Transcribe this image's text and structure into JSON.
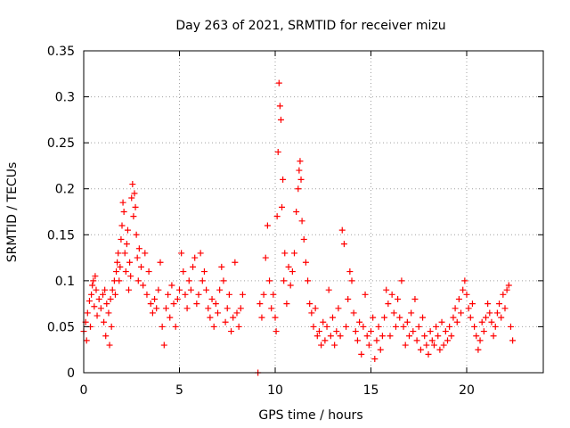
{
  "chart_data": {
    "type": "scatter",
    "title": "Day 263 of 2021, SRMTID for receiver mizu",
    "xlabel": "GPS time / hours",
    "ylabel": "SRMTID / TECUs",
    "xlim": [
      0,
      24
    ],
    "ylim": [
      0,
      0.35
    ],
    "xticks": [
      0,
      5,
      10,
      15,
      20
    ],
    "yticks": [
      0,
      0.05,
      0.1,
      0.15,
      0.2,
      0.25,
      0.3,
      0.35
    ],
    "xtick_labels": [
      "0",
      "5",
      "10",
      "15",
      "20"
    ],
    "ytick_labels": [
      "0",
      "0.05",
      "0.1",
      "0.15",
      "0.2",
      "0.25",
      "0.3",
      "0.35"
    ],
    "grid": true,
    "marker": "plus",
    "series": [
      {
        "name": "SRMTID",
        "color": "#ff0000",
        "points": [
          [
            0.0,
            0.045
          ],
          [
            0.1,
            0.055
          ],
          [
            0.15,
            0.035
          ],
          [
            0.2,
            0.065
          ],
          [
            0.3,
            0.078
          ],
          [
            0.35,
            0.05
          ],
          [
            0.4,
            0.085
          ],
          [
            0.45,
            0.095
          ],
          [
            0.5,
            0.1
          ],
          [
            0.55,
            0.072
          ],
          [
            0.6,
            0.105
          ],
          [
            0.65,
            0.09
          ],
          [
            0.7,
            0.062
          ],
          [
            0.8,
            0.08
          ],
          [
            0.9,
            0.07
          ],
          [
            1.0,
            0.085
          ],
          [
            1.05,
            0.055
          ],
          [
            1.1,
            0.09
          ],
          [
            1.15,
            0.04
          ],
          [
            1.2,
            0.075
          ],
          [
            1.3,
            0.065
          ],
          [
            1.35,
            0.03
          ],
          [
            1.4,
            0.08
          ],
          [
            1.45,
            0.05
          ],
          [
            1.5,
            0.09
          ],
          [
            1.6,
            0.1
          ],
          [
            1.65,
            0.085
          ],
          [
            1.7,
            0.11
          ],
          [
            1.75,
            0.12
          ],
          [
            1.8,
            0.13
          ],
          [
            1.85,
            0.1
          ],
          [
            1.9,
            0.115
          ],
          [
            1.95,
            0.145
          ],
          [
            2.0,
            0.16
          ],
          [
            2.05,
            0.185
          ],
          [
            2.1,
            0.175
          ],
          [
            2.15,
            0.13
          ],
          [
            2.2,
            0.11
          ],
          [
            2.25,
            0.14
          ],
          [
            2.3,
            0.155
          ],
          [
            2.35,
            0.09
          ],
          [
            2.4,
            0.12
          ],
          [
            2.45,
            0.105
          ],
          [
            2.5,
            0.19
          ],
          [
            2.55,
            0.205
          ],
          [
            2.6,
            0.17
          ],
          [
            2.65,
            0.195
          ],
          [
            2.7,
            0.18
          ],
          [
            2.75,
            0.15
          ],
          [
            2.8,
            0.125
          ],
          [
            2.85,
            0.1
          ],
          [
            2.9,
            0.135
          ],
          [
            3.0,
            0.115
          ],
          [
            3.1,
            0.095
          ],
          [
            3.2,
            0.13
          ],
          [
            3.3,
            0.085
          ],
          [
            3.4,
            0.11
          ],
          [
            3.5,
            0.075
          ],
          [
            3.6,
            0.065
          ],
          [
            3.7,
            0.08
          ],
          [
            3.8,
            0.07
          ],
          [
            3.9,
            0.09
          ],
          [
            4.0,
            0.12
          ],
          [
            4.1,
            0.05
          ],
          [
            4.2,
            0.03
          ],
          [
            4.3,
            0.07
          ],
          [
            4.4,
            0.085
          ],
          [
            4.5,
            0.06
          ],
          [
            4.6,
            0.095
          ],
          [
            4.7,
            0.075
          ],
          [
            4.8,
            0.05
          ],
          [
            4.9,
            0.08
          ],
          [
            5.0,
            0.09
          ],
          [
            5.1,
            0.13
          ],
          [
            5.2,
            0.11
          ],
          [
            5.3,
            0.085
          ],
          [
            5.4,
            0.07
          ],
          [
            5.5,
            0.1
          ],
          [
            5.6,
            0.09
          ],
          [
            5.7,
            0.115
          ],
          [
            5.8,
            0.125
          ],
          [
            5.9,
            0.075
          ],
          [
            6.0,
            0.085
          ],
          [
            6.1,
            0.13
          ],
          [
            6.2,
            0.1
          ],
          [
            6.3,
            0.11
          ],
          [
            6.4,
            0.09
          ],
          [
            6.5,
            0.07
          ],
          [
            6.6,
            0.06
          ],
          [
            6.7,
            0.08
          ],
          [
            6.8,
            0.05
          ],
          [
            6.9,
            0.075
          ],
          [
            7.0,
            0.065
          ],
          [
            7.1,
            0.09
          ],
          [
            7.2,
            0.115
          ],
          [
            7.3,
            0.1
          ],
          [
            7.4,
            0.055
          ],
          [
            7.5,
            0.07
          ],
          [
            7.6,
            0.085
          ],
          [
            7.7,
            0.045
          ],
          [
            7.8,
            0.06
          ],
          [
            7.9,
            0.12
          ],
          [
            8.0,
            0.065
          ],
          [
            8.1,
            0.05
          ],
          [
            8.2,
            0.07
          ],
          [
            8.3,
            0.085
          ],
          [
            9.1,
            0.0
          ],
          [
            9.2,
            0.075
          ],
          [
            9.3,
            0.06
          ],
          [
            9.4,
            0.085
          ],
          [
            9.5,
            0.125
          ],
          [
            9.6,
            0.16
          ],
          [
            9.7,
            0.1
          ],
          [
            9.8,
            0.07
          ],
          [
            9.9,
            0.085
          ],
          [
            10.0,
            0.06
          ],
          [
            10.05,
            0.045
          ],
          [
            10.1,
            0.17
          ],
          [
            10.15,
            0.24
          ],
          [
            10.2,
            0.315
          ],
          [
            10.25,
            0.29
          ],
          [
            10.3,
            0.275
          ],
          [
            10.35,
            0.18
          ],
          [
            10.4,
            0.21
          ],
          [
            10.45,
            0.1
          ],
          [
            10.5,
            0.13
          ],
          [
            10.6,
            0.075
          ],
          [
            10.7,
            0.115
          ],
          [
            10.8,
            0.095
          ],
          [
            10.9,
            0.11
          ],
          [
            11.0,
            0.13
          ],
          [
            11.1,
            0.175
          ],
          [
            11.2,
            0.2
          ],
          [
            11.25,
            0.22
          ],
          [
            11.3,
            0.23
          ],
          [
            11.35,
            0.21
          ],
          [
            11.4,
            0.165
          ],
          [
            11.5,
            0.145
          ],
          [
            11.6,
            0.12
          ],
          [
            11.7,
            0.1
          ],
          [
            11.8,
            0.075
          ],
          [
            11.9,
            0.065
          ],
          [
            12.0,
            0.05
          ],
          [
            12.1,
            0.07
          ],
          [
            12.2,
            0.04
          ],
          [
            12.3,
            0.045
          ],
          [
            12.4,
            0.03
          ],
          [
            12.5,
            0.055
          ],
          [
            12.6,
            0.035
          ],
          [
            12.7,
            0.05
          ],
          [
            12.8,
            0.09
          ],
          [
            12.9,
            0.04
          ],
          [
            13.0,
            0.06
          ],
          [
            13.1,
            0.03
          ],
          [
            13.2,
            0.045
          ],
          [
            13.3,
            0.07
          ],
          [
            13.4,
            0.04
          ],
          [
            13.5,
            0.155
          ],
          [
            13.6,
            0.14
          ],
          [
            13.7,
            0.05
          ],
          [
            13.8,
            0.08
          ],
          [
            13.9,
            0.11
          ],
          [
            14.0,
            0.1
          ],
          [
            14.1,
            0.065
          ],
          [
            14.2,
            0.045
          ],
          [
            14.3,
            0.035
          ],
          [
            14.4,
            0.055
          ],
          [
            14.5,
            0.02
          ],
          [
            14.6,
            0.05
          ],
          [
            14.7,
            0.085
          ],
          [
            14.8,
            0.04
          ],
          [
            14.9,
            0.03
          ],
          [
            15.0,
            0.045
          ],
          [
            15.1,
            0.06
          ],
          [
            15.2,
            0.015
          ],
          [
            15.3,
            0.035
          ],
          [
            15.4,
            0.05
          ],
          [
            15.5,
            0.025
          ],
          [
            15.6,
            0.04
          ],
          [
            15.7,
            0.06
          ],
          [
            15.8,
            0.09
          ],
          [
            15.9,
            0.075
          ],
          [
            16.0,
            0.04
          ],
          [
            16.1,
            0.085
          ],
          [
            16.2,
            0.065
          ],
          [
            16.3,
            0.05
          ],
          [
            16.4,
            0.08
          ],
          [
            16.5,
            0.06
          ],
          [
            16.6,
            0.1
          ],
          [
            16.7,
            0.05
          ],
          [
            16.8,
            0.03
          ],
          [
            16.9,
            0.055
          ],
          [
            17.0,
            0.04
          ],
          [
            17.1,
            0.065
          ],
          [
            17.2,
            0.045
          ],
          [
            17.3,
            0.08
          ],
          [
            17.4,
            0.035
          ],
          [
            17.5,
            0.05
          ],
          [
            17.6,
            0.025
          ],
          [
            17.7,
            0.06
          ],
          [
            17.8,
            0.04
          ],
          [
            17.9,
            0.03
          ],
          [
            18.0,
            0.02
          ],
          [
            18.1,
            0.045
          ],
          [
            18.2,
            0.035
          ],
          [
            18.3,
            0.03
          ],
          [
            18.4,
            0.05
          ],
          [
            18.5,
            0.04
          ],
          [
            18.6,
            0.025
          ],
          [
            18.7,
            0.055
          ],
          [
            18.8,
            0.03
          ],
          [
            18.9,
            0.045
          ],
          [
            19.0,
            0.035
          ],
          [
            19.1,
            0.05
          ],
          [
            19.2,
            0.04
          ],
          [
            19.3,
            0.06
          ],
          [
            19.4,
            0.07
          ],
          [
            19.5,
            0.055
          ],
          [
            19.6,
            0.08
          ],
          [
            19.7,
            0.065
          ],
          [
            19.8,
            0.09
          ],
          [
            19.9,
            0.1
          ],
          [
            20.0,
            0.085
          ],
          [
            20.1,
            0.07
          ],
          [
            20.2,
            0.06
          ],
          [
            20.3,
            0.075
          ],
          [
            20.4,
            0.05
          ],
          [
            20.5,
            0.04
          ],
          [
            20.6,
            0.025
          ],
          [
            20.7,
            0.035
          ],
          [
            20.8,
            0.055
          ],
          [
            20.9,
            0.045
          ],
          [
            21.0,
            0.06
          ],
          [
            21.1,
            0.075
          ],
          [
            21.2,
            0.065
          ],
          [
            21.3,
            0.055
          ],
          [
            21.4,
            0.04
          ],
          [
            21.5,
            0.05
          ],
          [
            21.6,
            0.065
          ],
          [
            21.7,
            0.075
          ],
          [
            21.8,
            0.06
          ],
          [
            21.9,
            0.085
          ],
          [
            22.0,
            0.07
          ],
          [
            22.1,
            0.09
          ],
          [
            22.2,
            0.095
          ],
          [
            22.3,
            0.05
          ],
          [
            22.4,
            0.035
          ]
        ]
      }
    ]
  }
}
